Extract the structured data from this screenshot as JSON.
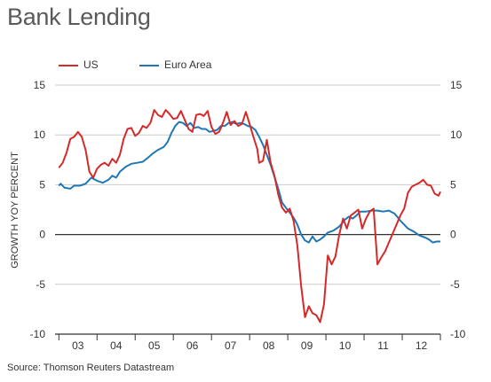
{
  "title": "Bank Lending",
  "source": "Source: Thomson Reuters Datastream",
  "chart_data": {
    "type": "line",
    "ylabel": "GROWTH YOY PERCENT",
    "ylim": [
      -10,
      15
    ],
    "yticks": [
      15,
      10,
      5,
      0,
      -5,
      -10
    ],
    "ytick_labels": [
      "15",
      "10",
      "5",
      "0",
      "-5",
      "-10"
    ],
    "xlim": [
      2002.9,
      2013.0
    ],
    "xtick_labels": [
      "03",
      "04",
      "05",
      "06",
      "07",
      "08",
      "09",
      "10",
      "11",
      "12"
    ],
    "grid": true,
    "legend_position": "top-left",
    "colors": {
      "US": "#d42a2a",
      "Euro Area": "#1f77b4",
      "axis": "#333333",
      "grid": "#cccccc"
    },
    "series": [
      {
        "name": "US",
        "color": "#d42a2a",
        "points": [
          [
            2003.0,
            6.7
          ],
          [
            2003.1,
            7.2
          ],
          [
            2003.2,
            8.2
          ],
          [
            2003.3,
            9.6
          ],
          [
            2003.4,
            9.8
          ],
          [
            2003.5,
            10.3
          ],
          [
            2003.6,
            9.8
          ],
          [
            2003.7,
            8.5
          ],
          [
            2003.8,
            6.3
          ],
          [
            2003.9,
            5.7
          ],
          [
            2004.0,
            6.6
          ],
          [
            2004.1,
            7.0
          ],
          [
            2004.2,
            7.2
          ],
          [
            2004.3,
            6.9
          ],
          [
            2004.4,
            7.6
          ],
          [
            2004.5,
            7.2
          ],
          [
            2004.6,
            8.0
          ],
          [
            2004.7,
            9.6
          ],
          [
            2004.8,
            10.6
          ],
          [
            2004.9,
            10.7
          ],
          [
            2005.0,
            9.9
          ],
          [
            2005.1,
            10.2
          ],
          [
            2005.2,
            10.9
          ],
          [
            2005.3,
            10.7
          ],
          [
            2005.4,
            11.2
          ],
          [
            2005.5,
            12.5
          ],
          [
            2005.6,
            12.0
          ],
          [
            2005.7,
            11.8
          ],
          [
            2005.8,
            12.5
          ],
          [
            2005.9,
            12.1
          ],
          [
            2006.0,
            11.6
          ],
          [
            2006.1,
            11.7
          ],
          [
            2006.2,
            12.4
          ],
          [
            2006.3,
            11.5
          ],
          [
            2006.4,
            10.6
          ],
          [
            2006.5,
            10.3
          ],
          [
            2006.6,
            12.0
          ],
          [
            2006.7,
            12.1
          ],
          [
            2006.8,
            11.9
          ],
          [
            2006.9,
            12.4
          ],
          [
            2007.0,
            10.8
          ],
          [
            2007.1,
            10.1
          ],
          [
            2007.2,
            10.3
          ],
          [
            2007.3,
            11.2
          ],
          [
            2007.4,
            12.3
          ],
          [
            2007.5,
            11.0
          ],
          [
            2007.6,
            11.4
          ],
          [
            2007.7,
            10.9
          ],
          [
            2007.8,
            11.1
          ],
          [
            2007.9,
            12.3
          ],
          [
            2008.0,
            11.1
          ],
          [
            2008.1,
            9.8
          ],
          [
            2008.2,
            8.6
          ],
          [
            2008.25,
            7.2
          ],
          [
            2008.35,
            7.4
          ],
          [
            2008.45,
            9.5
          ],
          [
            2008.55,
            7.2
          ],
          [
            2008.65,
            5.9
          ],
          [
            2008.75,
            4.0
          ],
          [
            2008.85,
            2.7
          ],
          [
            2008.95,
            2.2
          ],
          [
            2009.05,
            2.6
          ],
          [
            2009.15,
            1.4
          ],
          [
            2009.25,
            -1.1
          ],
          [
            2009.35,
            -5.2
          ],
          [
            2009.45,
            -8.3
          ],
          [
            2009.55,
            -7.2
          ],
          [
            2009.65,
            -7.9
          ],
          [
            2009.75,
            -8.1
          ],
          [
            2009.85,
            -8.8
          ],
          [
            2009.95,
            -7.0
          ],
          [
            2010.05,
            -2.1
          ],
          [
            2010.15,
            -3.0
          ],
          [
            2010.25,
            -2.2
          ],
          [
            2010.35,
            0.0
          ],
          [
            2010.45,
            1.6
          ],
          [
            2010.55,
            0.6
          ],
          [
            2010.65,
            1.9
          ],
          [
            2010.75,
            2.2
          ],
          [
            2010.85,
            2.5
          ],
          [
            2010.95,
            0.6
          ],
          [
            2011.05,
            1.6
          ],
          [
            2011.15,
            2.3
          ],
          [
            2011.25,
            2.6
          ],
          [
            2011.35,
            -3.0
          ],
          [
            2011.45,
            -2.3
          ],
          [
            2011.55,
            -1.7
          ],
          [
            2011.65,
            -0.8
          ],
          [
            2011.75,
            0.1
          ],
          [
            2011.85,
            1.0
          ],
          [
            2011.95,
            1.9
          ],
          [
            2012.05,
            2.6
          ],
          [
            2012.15,
            4.2
          ],
          [
            2012.25,
            4.8
          ],
          [
            2012.35,
            5.0
          ],
          [
            2012.45,
            5.2
          ],
          [
            2012.55,
            5.5
          ],
          [
            2012.65,
            5.0
          ],
          [
            2012.75,
            4.9
          ],
          [
            2012.85,
            4.1
          ],
          [
            2012.95,
            3.9
          ],
          [
            2013.0,
            4.3
          ]
        ]
      },
      {
        "name": "Euro Area",
        "color": "#1f77b4",
        "points": [
          [
            2003.0,
            4.9
          ],
          [
            2003.05,
            5.1
          ],
          [
            2003.15,
            4.7
          ],
          [
            2003.3,
            4.6
          ],
          [
            2003.4,
            4.9
          ],
          [
            2003.55,
            4.9
          ],
          [
            2003.7,
            5.1
          ],
          [
            2003.85,
            5.7
          ],
          [
            2004.0,
            5.4
          ],
          [
            2004.15,
            5.2
          ],
          [
            2004.3,
            5.5
          ],
          [
            2004.4,
            5.9
          ],
          [
            2004.5,
            5.7
          ],
          [
            2004.6,
            6.3
          ],
          [
            2004.75,
            6.8
          ],
          [
            2004.9,
            7.1
          ],
          [
            2005.05,
            7.2
          ],
          [
            2005.2,
            7.3
          ],
          [
            2005.3,
            7.6
          ],
          [
            2005.45,
            8.1
          ],
          [
            2005.6,
            8.5
          ],
          [
            2005.75,
            8.8
          ],
          [
            2005.85,
            9.3
          ],
          [
            2005.95,
            10.2
          ],
          [
            2006.05,
            10.9
          ],
          [
            2006.15,
            11.3
          ],
          [
            2006.25,
            11.2
          ],
          [
            2006.35,
            10.9
          ],
          [
            2006.45,
            11.2
          ],
          [
            2006.55,
            10.7
          ],
          [
            2006.65,
            10.8
          ],
          [
            2006.75,
            10.6
          ],
          [
            2006.85,
            10.6
          ],
          [
            2006.95,
            10.3
          ],
          [
            2007.05,
            10.4
          ],
          [
            2007.15,
            10.5
          ],
          [
            2007.25,
            10.9
          ],
          [
            2007.35,
            10.9
          ],
          [
            2007.45,
            11.2
          ],
          [
            2007.55,
            11.3
          ],
          [
            2007.65,
            11.1
          ],
          [
            2007.75,
            11.2
          ],
          [
            2007.85,
            11.1
          ],
          [
            2007.95,
            10.9
          ],
          [
            2008.05,
            10.8
          ],
          [
            2008.15,
            10.5
          ],
          [
            2008.25,
            9.8
          ],
          [
            2008.35,
            9.0
          ],
          [
            2008.45,
            8.0
          ],
          [
            2008.55,
            7.0
          ],
          [
            2008.65,
            5.8
          ],
          [
            2008.75,
            4.6
          ],
          [
            2008.85,
            3.2
          ],
          [
            2008.95,
            2.7
          ],
          [
            2009.05,
            2.2
          ],
          [
            2009.15,
            1.7
          ],
          [
            2009.25,
            1.0
          ],
          [
            2009.35,
            0.0
          ],
          [
            2009.45,
            -0.6
          ],
          [
            2009.55,
            -0.8
          ],
          [
            2009.65,
            -0.2
          ],
          [
            2009.75,
            -0.7
          ],
          [
            2009.85,
            -0.5
          ],
          [
            2009.95,
            -0.2
          ],
          [
            2010.05,
            0.2
          ],
          [
            2010.2,
            0.4
          ],
          [
            2010.35,
            0.8
          ],
          [
            2010.5,
            1.5
          ],
          [
            2010.6,
            1.8
          ],
          [
            2010.7,
            1.6
          ],
          [
            2010.8,
            1.9
          ],
          [
            2010.9,
            2.3
          ],
          [
            2011.05,
            2.3
          ],
          [
            2011.2,
            2.4
          ],
          [
            2011.35,
            2.4
          ],
          [
            2011.5,
            2.3
          ],
          [
            2011.65,
            2.4
          ],
          [
            2011.8,
            2.1
          ],
          [
            2011.95,
            1.4
          ],
          [
            2012.05,
            1.0
          ],
          [
            2012.15,
            0.6
          ],
          [
            2012.3,
            0.3
          ],
          [
            2012.45,
            -0.1
          ],
          [
            2012.6,
            -0.3
          ],
          [
            2012.7,
            -0.5
          ],
          [
            2012.8,
            -0.8
          ],
          [
            2012.9,
            -0.7
          ],
          [
            2013.0,
            -0.7
          ]
        ]
      }
    ]
  }
}
